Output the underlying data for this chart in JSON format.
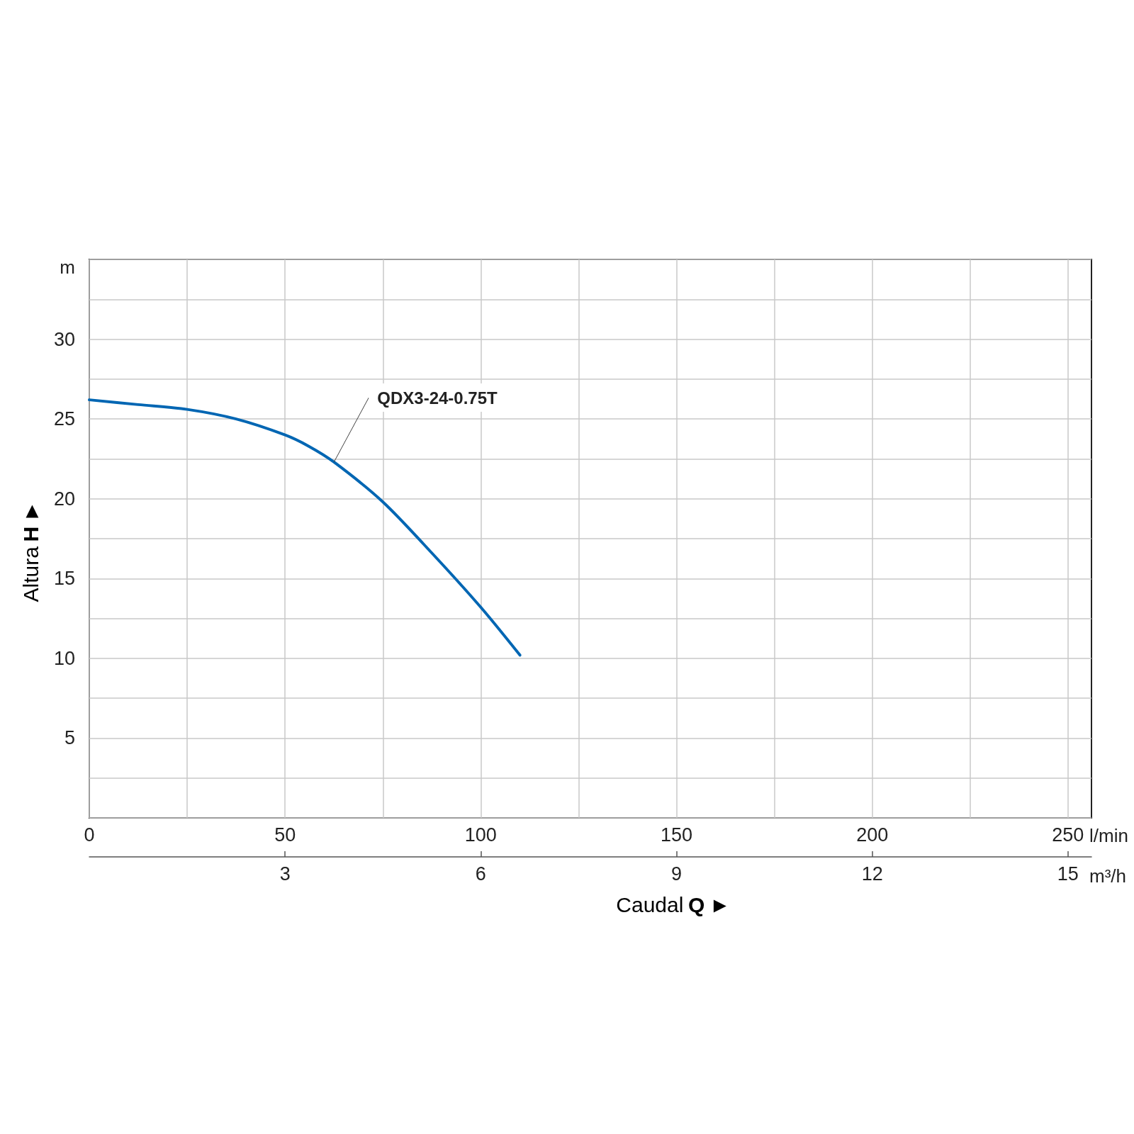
{
  "chart_data": {
    "type": "line",
    "xlabel": "Caudal Q ►",
    "ylabel": "Altura H ►",
    "x2label": "m³/h",
    "annotations": [
      "l/min",
      "m"
    ],
    "x": [
      0,
      12.5,
      25,
      37.5,
      50,
      56,
      62.5,
      75,
      87.5,
      100,
      110
    ],
    "series": [
      {
        "name": "QDX3-24-0.75T",
        "color": "#0066b3",
        "values": [
          26.2,
          25.9,
          25.6,
          25.0,
          24.0,
          23.3,
          22.3,
          19.8,
          16.6,
          13.2,
          10.2
        ]
      }
    ],
    "xlim": [
      0,
      256
    ],
    "xticks": [
      0,
      {
        "value": 25,
        "label": null
      },
      50,
      {
        "value": 75,
        "label": null
      },
      100,
      {
        "value": 125,
        "label": null
      },
      150,
      {
        "value": 175,
        "label": null
      },
      200,
      {
        "value": 225,
        "label": null
      },
      250
    ],
    "x2lim": [
      0,
      15.36
    ],
    "x2ticks": [
      3,
      6,
      9,
      12,
      15
    ],
    "ylim": [
      0,
      35
    ],
    "yticks": [
      {
        "value": 0,
        "label": null
      },
      {
        "value": 2.5,
        "label": null
      },
      5,
      {
        "value": 7.5,
        "label": null
      },
      10,
      {
        "value": 12.5,
        "label": null
      },
      15,
      {
        "value": 17.5,
        "label": null
      },
      20,
      {
        "value": 22.5,
        "label": null
      },
      25,
      {
        "value": 27.5,
        "label": null
      },
      30,
      {
        "value": 32.5,
        "label": null
      },
      {
        "value": 35,
        "label": null
      }
    ],
    "grid": true,
    "marker": "none",
    "line_style": "solid"
  }
}
